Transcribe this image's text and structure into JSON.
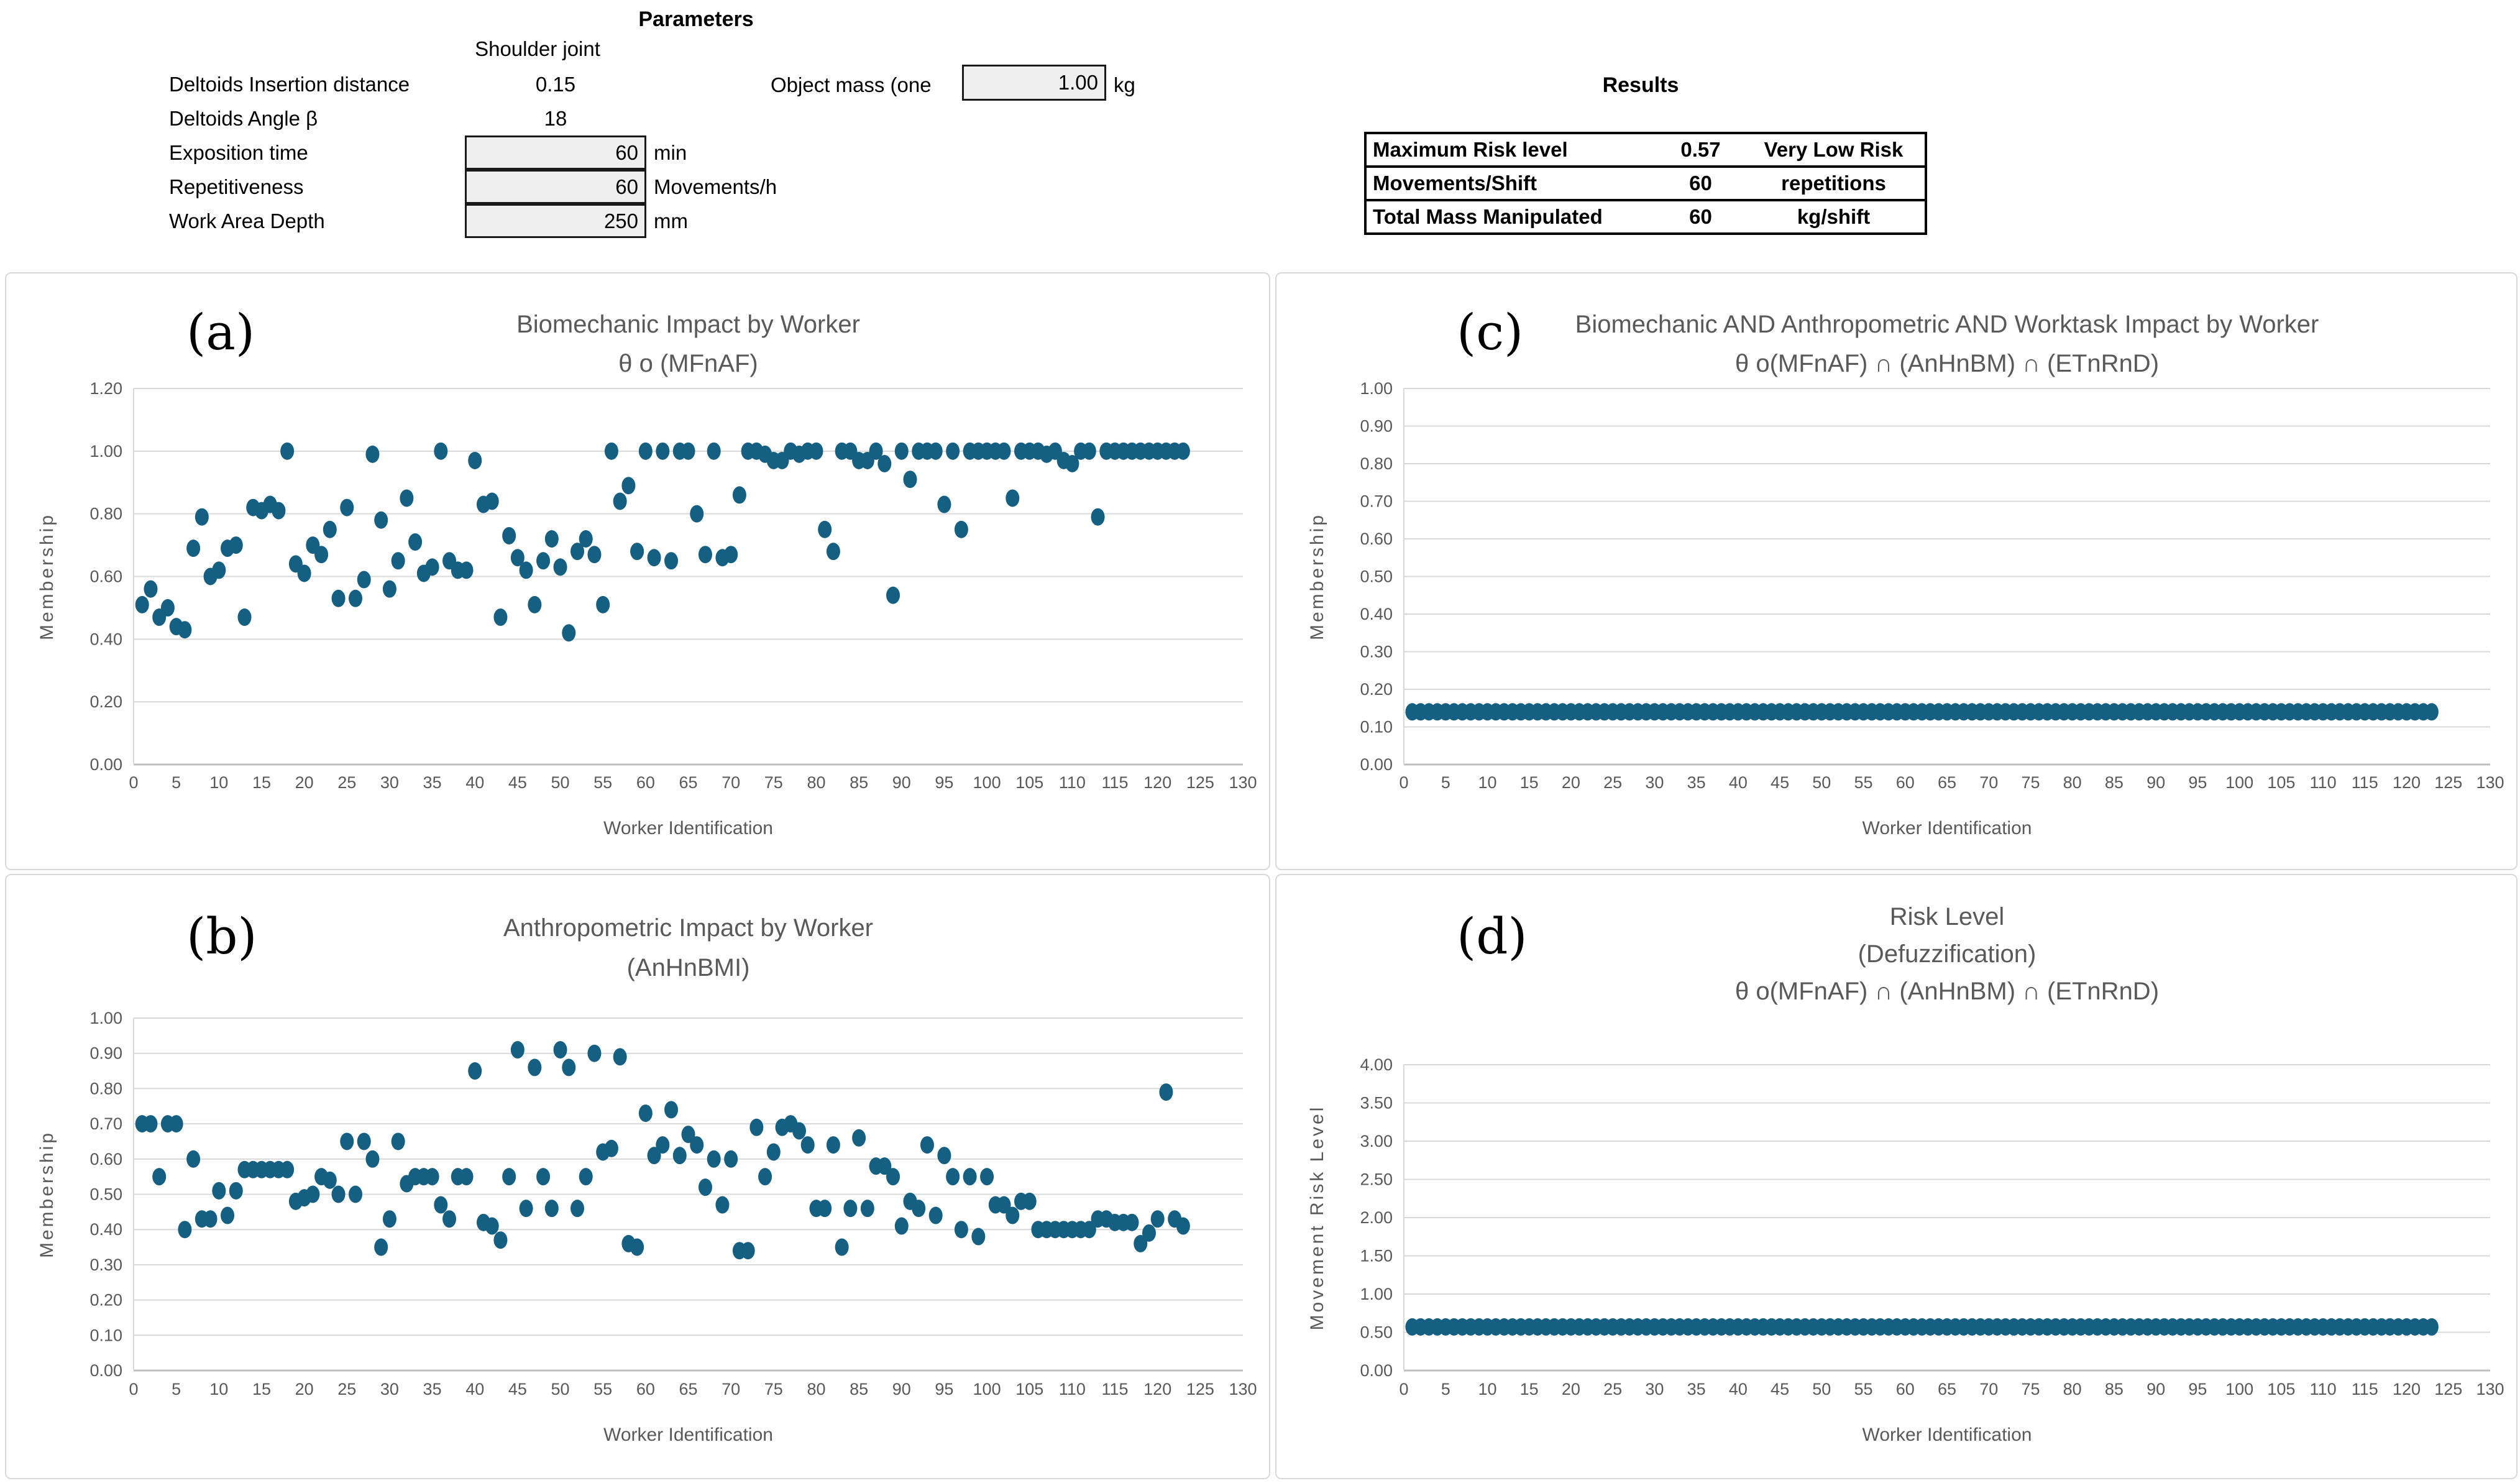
{
  "parameters": {
    "title": "Parameters",
    "column_header": "Shoulder joint",
    "rows": [
      {
        "label": "Deltoids Insertion distance",
        "value": "0.15",
        "unit": "",
        "boxed": false
      },
      {
        "label": "Deltoids Angle β",
        "value": "18",
        "unit": "",
        "boxed": false
      },
      {
        "label": "Exposition time",
        "value": "60",
        "unit": "min",
        "boxed": true
      },
      {
        "label": "Repetitiveness",
        "value": "60",
        "unit": "Movements/h",
        "boxed": true
      },
      {
        "label": "Work Area Depth",
        "value": "250",
        "unit": "mm",
        "boxed": true
      }
    ],
    "object_mass": {
      "label": "Object mass (one",
      "value": "1.00",
      "unit": "kg"
    }
  },
  "results": {
    "title": "Results",
    "rows": [
      {
        "label": "Maximum Risk level",
        "value": "0.57",
        "unit": "Very Low Risk"
      },
      {
        "label": "Movements/Shift",
        "value": "60",
        "unit": "repetitions"
      },
      {
        "label": "Total Mass Manipulated",
        "value": "60",
        "unit": "kg/shift"
      }
    ]
  },
  "colors": {
    "dot": "#156082",
    "grid": "#d9d9d9",
    "axis": "#bfbfbf",
    "chart_text": "#595959",
    "letter": "#000000"
  },
  "chart_data": [
    {
      "id": "a",
      "panel_label": "(a)",
      "type": "scatter",
      "title_lines": [
        "Biomechanic Impact by Worker",
        "θ o (MFnAF)"
      ],
      "xlabel": "Worker Identification",
      "ylabel": "Membership",
      "xlim": [
        0,
        130
      ],
      "xtick_step": 5,
      "ylim": [
        0,
        1.2
      ],
      "ytick_step": 0.2,
      "grid": true,
      "legend": "none",
      "points": [
        [
          1,
          0.51
        ],
        [
          2,
          0.56
        ],
        [
          3,
          0.47
        ],
        [
          4,
          0.5
        ],
        [
          5,
          0.44
        ],
        [
          6,
          0.43
        ],
        [
          7,
          0.69
        ],
        [
          8,
          0.79
        ],
        [
          9,
          0.6
        ],
        [
          10,
          0.62
        ],
        [
          11,
          0.69
        ],
        [
          12,
          0.7
        ],
        [
          13,
          0.47
        ],
        [
          14,
          0.82
        ],
        [
          15,
          0.81
        ],
        [
          16,
          0.83
        ],
        [
          17,
          0.81
        ],
        [
          18,
          1.0
        ],
        [
          19,
          0.64
        ],
        [
          20,
          0.61
        ],
        [
          21,
          0.7
        ],
        [
          22,
          0.67
        ],
        [
          23,
          0.75
        ],
        [
          24,
          0.53
        ],
        [
          25,
          0.82
        ],
        [
          26,
          0.53
        ],
        [
          27,
          0.59
        ],
        [
          28,
          0.99
        ],
        [
          29,
          0.78
        ],
        [
          30,
          0.56
        ],
        [
          31,
          0.65
        ],
        [
          32,
          0.85
        ],
        [
          33,
          0.71
        ],
        [
          34,
          0.61
        ],
        [
          35,
          0.63
        ],
        [
          36,
          1.0
        ],
        [
          37,
          0.65
        ],
        [
          38,
          0.62
        ],
        [
          39,
          0.62
        ],
        [
          40,
          0.97
        ],
        [
          41,
          0.83
        ],
        [
          42,
          0.84
        ],
        [
          43,
          0.47
        ],
        [
          44,
          0.73
        ],
        [
          45,
          0.66
        ],
        [
          46,
          0.62
        ],
        [
          47,
          0.51
        ],
        [
          48,
          0.65
        ],
        [
          49,
          0.72
        ],
        [
          50,
          0.63
        ],
        [
          51,
          0.42
        ],
        [
          52,
          0.68
        ],
        [
          53,
          0.72
        ],
        [
          54,
          0.67
        ],
        [
          55,
          0.51
        ],
        [
          56,
          1.0
        ],
        [
          57,
          0.84
        ],
        [
          58,
          0.89
        ],
        [
          59,
          0.68
        ],
        [
          60,
          1.0
        ],
        [
          61,
          0.66
        ],
        [
          62,
          1.0
        ],
        [
          63,
          0.65
        ],
        [
          64,
          1.0
        ],
        [
          65,
          1.0
        ],
        [
          66,
          0.8
        ],
        [
          67,
          0.67
        ],
        [
          68,
          1.0
        ],
        [
          69,
          0.66
        ],
        [
          70,
          0.67
        ],
        [
          71,
          0.86
        ],
        [
          72,
          1.0
        ],
        [
          73,
          1.0
        ],
        [
          74,
          0.99
        ],
        [
          75,
          0.97
        ],
        [
          76,
          0.97
        ],
        [
          77,
          1.0
        ],
        [
          78,
          0.99
        ],
        [
          79,
          1.0
        ],
        [
          80,
          1.0
        ],
        [
          81,
          0.75
        ],
        [
          82,
          0.68
        ],
        [
          83,
          1.0
        ],
        [
          84,
          1.0
        ],
        [
          85,
          0.97
        ],
        [
          86,
          0.97
        ],
        [
          87,
          1.0
        ],
        [
          88,
          0.96
        ],
        [
          89,
          0.54
        ],
        [
          90,
          1.0
        ],
        [
          91,
          0.91
        ],
        [
          92,
          1.0
        ],
        [
          93,
          1.0
        ],
        [
          94,
          1.0
        ],
        [
          95,
          0.83
        ],
        [
          96,
          1.0
        ],
        [
          97,
          0.75
        ],
        [
          98,
          1.0
        ],
        [
          99,
          1.0
        ],
        [
          100,
          1.0
        ],
        [
          101,
          1.0
        ],
        [
          102,
          1.0
        ],
        [
          103,
          0.85
        ],
        [
          104,
          1.0
        ],
        [
          105,
          1.0
        ],
        [
          106,
          1.0
        ],
        [
          107,
          0.99
        ],
        [
          108,
          1.0
        ],
        [
          109,
          0.97
        ],
        [
          110,
          0.96
        ],
        [
          111,
          1.0
        ],
        [
          112,
          1.0
        ],
        [
          113,
          0.79
        ],
        [
          114,
          1.0
        ],
        [
          115,
          1.0
        ],
        [
          116,
          1.0
        ],
        [
          117,
          1.0
        ],
        [
          118,
          1.0
        ],
        [
          119,
          1.0
        ],
        [
          120,
          1.0
        ],
        [
          121,
          1.0
        ],
        [
          122,
          1.0
        ],
        [
          123,
          1.0
        ]
      ]
    },
    {
      "id": "c",
      "panel_label": "(c)",
      "type": "scatter",
      "title_lines": [
        "Biomechanic AND Anthropometric AND  Worktask Impact by Worker",
        "θ o(MFnAF) ∩ (AnHnBM) ∩ (ETnRnD)"
      ],
      "xlabel": "Worker Identification",
      "ylabel": "Membership",
      "xlim": [
        0,
        130
      ],
      "xtick_step": 5,
      "ylim": [
        0,
        1.0
      ],
      "ytick_step": 0.1,
      "grid": true,
      "legend": "none",
      "constant_series": {
        "x_start": 1,
        "x_end": 123,
        "y": 0.14
      }
    },
    {
      "id": "b",
      "panel_label": "(b)",
      "type": "scatter",
      "title_lines": [
        "Anthropometric Impact by Worker",
        "(AnHnBMI)"
      ],
      "xlabel": "Worker Identification",
      "ylabel": "Membership",
      "xlim": [
        0,
        130
      ],
      "xtick_step": 5,
      "ylim": [
        0,
        1.0
      ],
      "ytick_step": 0.1,
      "grid": true,
      "legend": "none",
      "points": [
        [
          1,
          0.7
        ],
        [
          2,
          0.7
        ],
        [
          3,
          0.55
        ],
        [
          4,
          0.7
        ],
        [
          5,
          0.7
        ],
        [
          6,
          0.4
        ],
        [
          7,
          0.6
        ],
        [
          8,
          0.43
        ],
        [
          9,
          0.43
        ],
        [
          10,
          0.51
        ],
        [
          11,
          0.44
        ],
        [
          12,
          0.51
        ],
        [
          13,
          0.57
        ],
        [
          14,
          0.57
        ],
        [
          15,
          0.57
        ],
        [
          16,
          0.57
        ],
        [
          17,
          0.57
        ],
        [
          18,
          0.57
        ],
        [
          19,
          0.48
        ],
        [
          20,
          0.49
        ],
        [
          21,
          0.5
        ],
        [
          22,
          0.55
        ],
        [
          23,
          0.54
        ],
        [
          24,
          0.5
        ],
        [
          25,
          0.65
        ],
        [
          26,
          0.5
        ],
        [
          27,
          0.65
        ],
        [
          28,
          0.6
        ],
        [
          29,
          0.35
        ],
        [
          30,
          0.43
        ],
        [
          31,
          0.65
        ],
        [
          32,
          0.53
        ],
        [
          33,
          0.55
        ],
        [
          34,
          0.55
        ],
        [
          35,
          0.55
        ],
        [
          36,
          0.47
        ],
        [
          37,
          0.43
        ],
        [
          38,
          0.55
        ],
        [
          39,
          0.55
        ],
        [
          40,
          0.85
        ],
        [
          41,
          0.42
        ],
        [
          42,
          0.41
        ],
        [
          43,
          0.37
        ],
        [
          44,
          0.55
        ],
        [
          45,
          0.91
        ],
        [
          46,
          0.46
        ],
        [
          47,
          0.86
        ],
        [
          48,
          0.55
        ],
        [
          49,
          0.46
        ],
        [
          50,
          0.91
        ],
        [
          51,
          0.86
        ],
        [
          52,
          0.46
        ],
        [
          53,
          0.55
        ],
        [
          54,
          0.9
        ],
        [
          55,
          0.62
        ],
        [
          56,
          0.63
        ],
        [
          57,
          0.89
        ],
        [
          58,
          0.36
        ],
        [
          59,
          0.35
        ],
        [
          60,
          0.73
        ],
        [
          61,
          0.61
        ],
        [
          62,
          0.64
        ],
        [
          63,
          0.74
        ],
        [
          64,
          0.61
        ],
        [
          65,
          0.67
        ],
        [
          66,
          0.64
        ],
        [
          67,
          0.52
        ],
        [
          68,
          0.6
        ],
        [
          69,
          0.47
        ],
        [
          70,
          0.6
        ],
        [
          71,
          0.34
        ],
        [
          72,
          0.34
        ],
        [
          73,
          0.69
        ],
        [
          74,
          0.55
        ],
        [
          75,
          0.62
        ],
        [
          76,
          0.69
        ],
        [
          77,
          0.7
        ],
        [
          78,
          0.68
        ],
        [
          79,
          0.64
        ],
        [
          80,
          0.46
        ],
        [
          81,
          0.46
        ],
        [
          82,
          0.64
        ],
        [
          83,
          0.35
        ],
        [
          84,
          0.46
        ],
        [
          85,
          0.66
        ],
        [
          86,
          0.46
        ],
        [
          87,
          0.58
        ],
        [
          88,
          0.58
        ],
        [
          89,
          0.55
        ],
        [
          90,
          0.41
        ],
        [
          91,
          0.48
        ],
        [
          92,
          0.46
        ],
        [
          93,
          0.64
        ],
        [
          94,
          0.44
        ],
        [
          95,
          0.61
        ],
        [
          96,
          0.55
        ],
        [
          97,
          0.4
        ],
        [
          98,
          0.55
        ],
        [
          99,
          0.38
        ],
        [
          100,
          0.55
        ],
        [
          101,
          0.47
        ],
        [
          102,
          0.47
        ],
        [
          103,
          0.44
        ],
        [
          104,
          0.48
        ],
        [
          105,
          0.48
        ],
        [
          106,
          0.4
        ],
        [
          107,
          0.4
        ],
        [
          108,
          0.4
        ],
        [
          109,
          0.4
        ],
        [
          110,
          0.4
        ],
        [
          111,
          0.4
        ],
        [
          112,
          0.4
        ],
        [
          113,
          0.43
        ],
        [
          114,
          0.43
        ],
        [
          115,
          0.42
        ],
        [
          116,
          0.42
        ],
        [
          117,
          0.42
        ],
        [
          118,
          0.36
        ],
        [
          119,
          0.39
        ],
        [
          120,
          0.43
        ],
        [
          121,
          0.79
        ],
        [
          122,
          0.43
        ],
        [
          123,
          0.41
        ]
      ]
    },
    {
      "id": "d",
      "panel_label": "(d)",
      "type": "scatter",
      "title_lines": [
        "Risk Level",
        "(Defuzzification)",
        "θ o(MFnAF) ∩ (AnHnBM) ∩ (ETnRnD)"
      ],
      "xlabel": "Worker Identification",
      "ylabel": "Movement Risk Level",
      "xlim": [
        0,
        130
      ],
      "xtick_step": 5,
      "ylim": [
        0,
        4.0
      ],
      "ytick_step": 0.5,
      "grid": true,
      "legend": "none",
      "constant_series": {
        "x_start": 1,
        "x_end": 123,
        "y": 0.57
      }
    }
  ]
}
